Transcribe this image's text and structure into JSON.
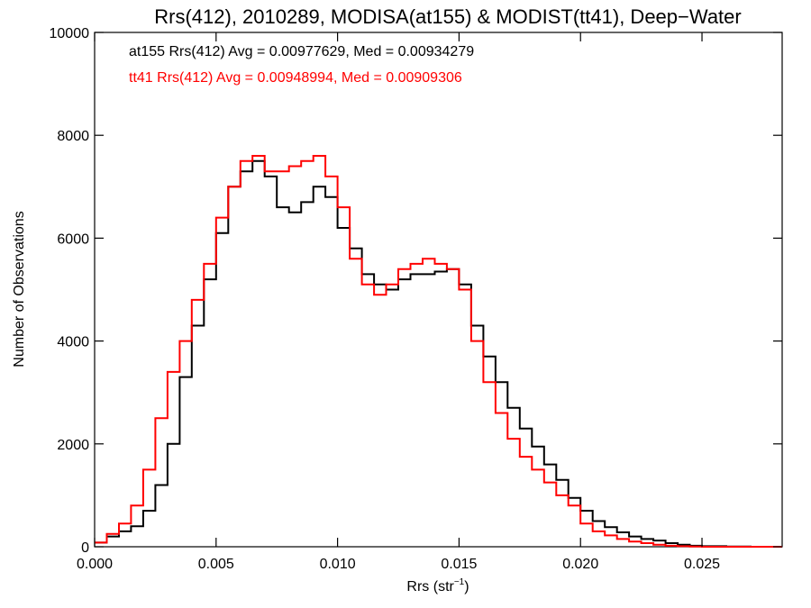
{
  "chart_data": {
    "type": "line",
    "title": "Rrs(412), 2010289, MODISA(at155) & MODIST(tt41), Deep−Water",
    "xlabel_main": "Rrs (str",
    "xlabel_sup": "−1",
    "xlabel_close": ")",
    "ylabel": "Number of Observations",
    "xlim": [
      0.0,
      0.0283
    ],
    "ylim": [
      0,
      10000
    ],
    "xticks": [
      0.0,
      0.005,
      0.01,
      0.015,
      0.02,
      0.025
    ],
    "xtick_labels": [
      "0.000",
      "0.005",
      "0.010",
      "0.015",
      "0.020",
      "0.025"
    ],
    "yticks": [
      0,
      2000,
      4000,
      6000,
      8000,
      10000
    ],
    "ytick_labels": [
      "0",
      "2000",
      "4000",
      "6000",
      "8000",
      "10000"
    ],
    "grid": false,
    "annotations": [
      {
        "text": "at155 Rrs(412) Avg = 0.00977629, Med = 0.00934279",
        "color": "#000000"
      },
      {
        "text": "tt41 Rrs(412) Avg = 0.00948994, Med = 0.00909306",
        "color": "#ff0000"
      }
    ],
    "series": [
      {
        "color": "#000000",
        "x": [
          0.0,
          0.0005,
          0.001,
          0.0015,
          0.002,
          0.0025,
          0.003,
          0.0035,
          0.004,
          0.0045,
          0.005,
          0.0055,
          0.006,
          0.0065,
          0.007,
          0.0075,
          0.008,
          0.0085,
          0.009,
          0.0095,
          0.01,
          0.0105,
          0.011,
          0.0115,
          0.012,
          0.0125,
          0.013,
          0.0135,
          0.014,
          0.0145,
          0.015,
          0.0155,
          0.016,
          0.0165,
          0.017,
          0.0175,
          0.018,
          0.0185,
          0.019,
          0.0195,
          0.02,
          0.0205,
          0.021,
          0.0215,
          0.022,
          0.0225,
          0.023,
          0.0235,
          0.024,
          0.0245,
          0.025,
          0.026,
          0.027,
          0.0283
        ],
        "values": [
          80,
          200,
          300,
          400,
          700,
          1200,
          2000,
          3300,
          4300,
          5200,
          6100,
          7000,
          7300,
          7500,
          7200,
          6600,
          6500,
          6700,
          7000,
          6800,
          6200,
          5800,
          5300,
          5100,
          5000,
          5200,
          5300,
          5300,
          5350,
          5400,
          5100,
          4300,
          3700,
          3200,
          2700,
          2300,
          1950,
          1600,
          1300,
          950,
          700,
          500,
          380,
          280,
          200,
          150,
          120,
          70,
          40,
          20,
          10,
          5,
          0,
          0
        ]
      },
      {
        "color": "#ff0000",
        "x": [
          0.0,
          0.0005,
          0.001,
          0.0015,
          0.002,
          0.0025,
          0.003,
          0.0035,
          0.004,
          0.0045,
          0.005,
          0.0055,
          0.006,
          0.0065,
          0.007,
          0.0075,
          0.008,
          0.0085,
          0.009,
          0.0095,
          0.01,
          0.0105,
          0.011,
          0.0115,
          0.012,
          0.0125,
          0.013,
          0.0135,
          0.014,
          0.0145,
          0.015,
          0.0155,
          0.016,
          0.0165,
          0.017,
          0.0175,
          0.018,
          0.0185,
          0.019,
          0.0195,
          0.02,
          0.0205,
          0.021,
          0.0215,
          0.022,
          0.0225,
          0.023,
          0.0235,
          0.024,
          0.0245,
          0.025,
          0.026,
          0.027,
          0.0283
        ],
        "values": [
          80,
          250,
          450,
          800,
          1500,
          2500,
          3400,
          4000,
          4800,
          5500,
          6400,
          7000,
          7500,
          7600,
          7300,
          7300,
          7400,
          7500,
          7600,
          7200,
          6600,
          5600,
          5100,
          4900,
          5100,
          5400,
          5500,
          5600,
          5500,
          5400,
          5000,
          4000,
          3200,
          2600,
          2100,
          1750,
          1500,
          1250,
          1000,
          800,
          450,
          300,
          220,
          150,
          100,
          70,
          40,
          20,
          10,
          5,
          0,
          0,
          0,
          0
        ]
      }
    ]
  }
}
